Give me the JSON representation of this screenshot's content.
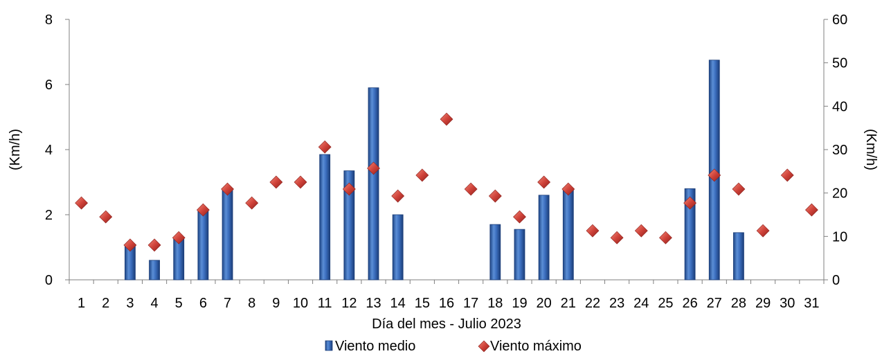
{
  "chart_data": {
    "type": "bar",
    "categories": [
      "1",
      "2",
      "3",
      "4",
      "5",
      "6",
      "7",
      "8",
      "9",
      "10",
      "11",
      "12",
      "13",
      "14",
      "15",
      "16",
      "17",
      "18",
      "19",
      "20",
      "21",
      "22",
      "23",
      "24",
      "25",
      "26",
      "27",
      "28",
      "29",
      "30",
      "31"
    ],
    "series": [
      {
        "name": "Viento medio",
        "type": "bar",
        "axis": "left",
        "color": "#2e5fa6",
        "values": [
          null,
          null,
          1.05,
          0.6,
          1.3,
          2.1,
          2.75,
          null,
          null,
          null,
          3.85,
          3.35,
          5.9,
          2.0,
          null,
          null,
          null,
          1.7,
          1.55,
          2.6,
          2.8,
          null,
          null,
          null,
          null,
          2.8,
          6.75,
          1.45,
          null,
          null,
          null
        ]
      },
      {
        "name": "Viento máximo",
        "type": "scatter",
        "axis": "right",
        "color": "#c0392b",
        "marker": "diamond",
        "values": [
          17.7,
          14.5,
          8.0,
          8.0,
          9.7,
          16.1,
          20.9,
          17.7,
          22.5,
          22.5,
          30.6,
          20.9,
          25.7,
          19.3,
          24.1,
          37.0,
          20.9,
          19.3,
          14.5,
          22.5,
          20.9,
          11.3,
          9.7,
          11.3,
          9.7,
          17.7,
          24.1,
          20.9,
          11.3,
          24.1,
          16.1
        ]
      }
    ],
    "y_left": {
      "label": "(Km/h)",
      "lim": [
        0,
        8
      ],
      "ticks": [
        "0",
        "2",
        "4",
        "6",
        "8"
      ]
    },
    "y_right": {
      "label": "(Km/h)",
      "lim": [
        0,
        60
      ],
      "ticks": [
        "0",
        "10",
        "20",
        "30",
        "40",
        "50",
        "60"
      ]
    },
    "xlabel": "Día del mes -  Julio 2023",
    "legend": {
      "position": "bottom",
      "items": [
        "Viento medio",
        "Viento máximo"
      ]
    },
    "grid": false
  }
}
